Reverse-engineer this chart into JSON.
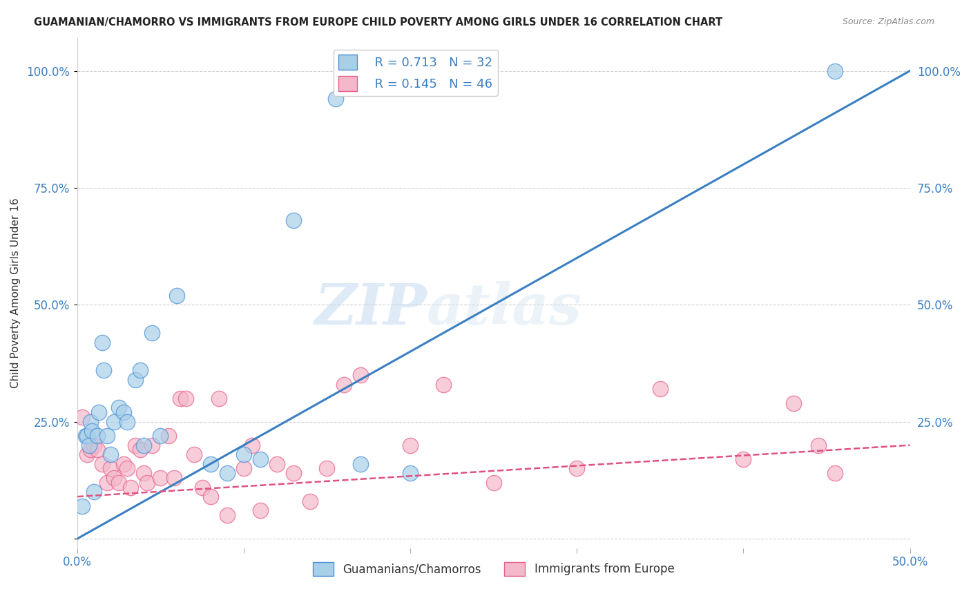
{
  "title": "GUAMANIAN/CHAMORRO VS IMMIGRANTS FROM EUROPE CHILD POVERTY AMONG GIRLS UNDER 16 CORRELATION CHART",
  "source": "Source: ZipAtlas.com",
  "ylabel": "Child Poverty Among Girls Under 16",
  "xlim": [
    0.0,
    0.5
  ],
  "ylim": [
    -0.02,
    1.07
  ],
  "ytick_vals": [
    0.0,
    0.25,
    0.5,
    0.75,
    1.0
  ],
  "ytick_labels": [
    "",
    "25.0%",
    "50.0%",
    "75.0%",
    "100.0%"
  ],
  "watermark_zip": "ZIP",
  "watermark_atlas": "atlas",
  "legend_R1": "R = 0.713",
  "legend_N1": "N = 32",
  "legend_R2": "R = 0.145",
  "legend_N2": "N = 46",
  "color_blue_fill": "#a8cfe8",
  "color_pink_fill": "#f4b8cb",
  "color_blue_edge": "#4a90d9",
  "color_pink_edge": "#e8608a",
  "color_blue_line": "#3a7fc1",
  "color_pink_line": "#e05080",
  "legend_label1": "Guamanians/Chamorros",
  "legend_label2": "Immigrants from Europe",
  "blue_line_x0": 0.0,
  "blue_line_y0": 0.0,
  "blue_line_x1": 0.5,
  "blue_line_y1": 1.0,
  "pink_line_x0": 0.0,
  "pink_line_y0": 0.09,
  "pink_line_x1": 0.5,
  "pink_line_y1": 0.2,
  "blue_points_x": [
    0.003,
    0.005,
    0.006,
    0.007,
    0.008,
    0.009,
    0.01,
    0.012,
    0.013,
    0.015,
    0.016,
    0.018,
    0.02,
    0.022,
    0.025,
    0.028,
    0.03,
    0.035,
    0.038,
    0.04,
    0.045,
    0.05,
    0.06,
    0.08,
    0.09,
    0.1,
    0.11,
    0.13,
    0.155,
    0.17,
    0.2,
    0.455
  ],
  "blue_points_y": [
    0.07,
    0.22,
    0.22,
    0.2,
    0.25,
    0.23,
    0.1,
    0.22,
    0.27,
    0.42,
    0.36,
    0.22,
    0.18,
    0.25,
    0.28,
    0.27,
    0.25,
    0.34,
    0.36,
    0.2,
    0.44,
    0.22,
    0.52,
    0.16,
    0.14,
    0.18,
    0.17,
    0.68,
    0.94,
    0.16,
    0.14,
    1.0
  ],
  "pink_points_x": [
    0.003,
    0.006,
    0.008,
    0.01,
    0.012,
    0.015,
    0.018,
    0.02,
    0.022,
    0.025,
    0.028,
    0.03,
    0.032,
    0.035,
    0.038,
    0.04,
    0.042,
    0.045,
    0.05,
    0.055,
    0.058,
    0.062,
    0.065,
    0.07,
    0.075,
    0.08,
    0.085,
    0.09,
    0.1,
    0.105,
    0.11,
    0.12,
    0.13,
    0.14,
    0.15,
    0.16,
    0.17,
    0.2,
    0.22,
    0.25,
    0.3,
    0.35,
    0.4,
    0.43,
    0.445,
    0.455
  ],
  "pink_points_y": [
    0.26,
    0.18,
    0.19,
    0.2,
    0.19,
    0.16,
    0.12,
    0.15,
    0.13,
    0.12,
    0.16,
    0.15,
    0.11,
    0.2,
    0.19,
    0.14,
    0.12,
    0.2,
    0.13,
    0.22,
    0.13,
    0.3,
    0.3,
    0.18,
    0.11,
    0.09,
    0.3,
    0.05,
    0.15,
    0.2,
    0.06,
    0.16,
    0.14,
    0.08,
    0.15,
    0.33,
    0.35,
    0.2,
    0.33,
    0.12,
    0.15,
    0.32,
    0.17,
    0.29,
    0.2,
    0.14
  ]
}
